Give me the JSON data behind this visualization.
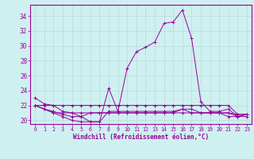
{
  "xlabel": "Windchill (Refroidissement éolien,°C)",
  "background_color": "#cff0f0",
  "line_color": "#990099",
  "grid_color": "#bbdddd",
  "hours": [
    0,
    1,
    2,
    3,
    4,
    5,
    6,
    7,
    8,
    9,
    10,
    11,
    12,
    13,
    14,
    15,
    16,
    17,
    18,
    19,
    20,
    21,
    22,
    23
  ],
  "series": [
    [
      23.0,
      22.2,
      22.0,
      21.2,
      21.0,
      20.5,
      19.8,
      19.8,
      24.3,
      21.2,
      27.0,
      29.2,
      29.8,
      30.5,
      33.0,
      33.2,
      34.8,
      31.0,
      22.5,
      21.2,
      21.2,
      21.5,
      20.5,
      20.5
    ],
    [
      22.0,
      22.0,
      22.0,
      22.0,
      22.0,
      22.0,
      22.0,
      22.0,
      22.0,
      22.0,
      22.0,
      22.0,
      22.0,
      22.0,
      22.0,
      22.0,
      22.0,
      22.0,
      22.0,
      22.0,
      22.0,
      22.0,
      20.8,
      20.8
    ],
    [
      22.0,
      21.5,
      21.0,
      21.0,
      21.0,
      21.0,
      21.0,
      21.0,
      21.0,
      21.0,
      21.0,
      21.0,
      21.0,
      21.0,
      21.0,
      21.0,
      21.0,
      21.0,
      21.0,
      21.0,
      21.0,
      21.0,
      20.8,
      20.8
    ],
    [
      22.0,
      21.5,
      21.2,
      20.8,
      20.5,
      20.5,
      21.0,
      21.0,
      21.0,
      21.0,
      21.0,
      21.0,
      21.0,
      21.0,
      21.0,
      21.0,
      21.5,
      21.5,
      21.0,
      21.0,
      21.0,
      20.5,
      20.5,
      20.8
    ],
    [
      22.0,
      21.5,
      21.0,
      20.5,
      20.0,
      19.8,
      19.8,
      19.8,
      21.2,
      21.2,
      21.2,
      21.2,
      21.2,
      21.2,
      21.2,
      21.2,
      21.5,
      21.0,
      21.0,
      21.0,
      21.0,
      21.0,
      20.5,
      20.8
    ]
  ],
  "ylim": [
    19.5,
    35.5
  ],
  "yticks": [
    20,
    22,
    24,
    26,
    28,
    30,
    32,
    34
  ],
  "xticks": [
    0,
    1,
    2,
    3,
    4,
    5,
    6,
    7,
    8,
    9,
    10,
    11,
    12,
    13,
    14,
    15,
    16,
    17,
    18,
    19,
    20,
    21,
    22,
    23
  ]
}
